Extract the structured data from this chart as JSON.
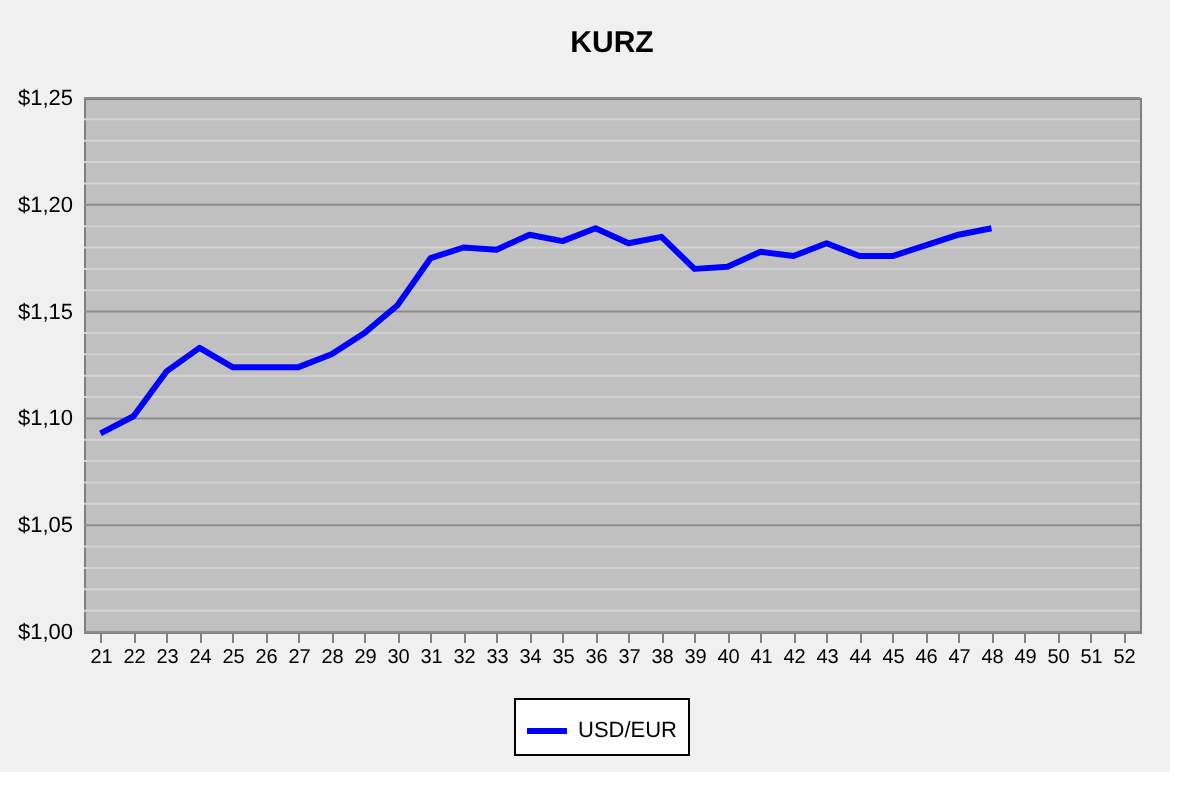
{
  "chart_data": {
    "type": "line",
    "title": "KURZ",
    "categories": [
      "21",
      "22",
      "23",
      "24",
      "25",
      "26",
      "27",
      "28",
      "29",
      "30",
      "31",
      "32",
      "33",
      "34",
      "35",
      "36",
      "37",
      "38",
      "39",
      "40",
      "41",
      "42",
      "43",
      "44",
      "45",
      "46",
      "47",
      "48",
      "49",
      "50",
      "51",
      "52"
    ],
    "series": [
      {
        "name": "USD/EUR",
        "color": "#0000ff",
        "values": [
          1.093,
          1.101,
          1.122,
          1.133,
          1.124,
          1.124,
          1.124,
          1.13,
          1.14,
          1.153,
          1.175,
          1.18,
          1.179,
          1.186,
          1.183,
          1.189,
          1.182,
          1.185,
          1.17,
          1.171,
          1.178,
          1.176,
          1.182,
          1.176,
          1.176,
          1.181,
          1.186,
          1.189,
          null,
          null,
          null,
          null
        ]
      }
    ],
    "ylim": [
      1.0,
      1.25
    ],
    "yticks": [
      {
        "value": 1.0,
        "label": "$1,00"
      },
      {
        "value": 1.01,
        "label": null
      },
      {
        "value": 1.02,
        "label": null
      },
      {
        "value": 1.03,
        "label": null
      },
      {
        "value": 1.04,
        "label": null
      },
      {
        "value": 1.05,
        "label": "$1,05"
      },
      {
        "value": 1.06,
        "label": null
      },
      {
        "value": 1.07,
        "label": null
      },
      {
        "value": 1.08,
        "label": null
      },
      {
        "value": 1.09,
        "label": null
      },
      {
        "value": 1.1,
        "label": "$1,10"
      },
      {
        "value": 1.11,
        "label": null
      },
      {
        "value": 1.12,
        "label": null
      },
      {
        "value": 1.13,
        "label": null
      },
      {
        "value": 1.14,
        "label": null
      },
      {
        "value": 1.15,
        "label": "$1,15"
      },
      {
        "value": 1.16,
        "label": null
      },
      {
        "value": 1.17,
        "label": null
      },
      {
        "value": 1.18,
        "label": null
      },
      {
        "value": 1.19,
        "label": null
      },
      {
        "value": 1.2,
        "label": "$1,20"
      },
      {
        "value": 1.21,
        "label": null
      },
      {
        "value": 1.22,
        "label": null
      },
      {
        "value": 1.23,
        "label": null
      },
      {
        "value": 1.24,
        "label": null
      },
      {
        "value": 1.25,
        "label": "$1,25"
      }
    ],
    "grid": "y",
    "legend": "bottom",
    "marker": "none",
    "line_style": "solid"
  }
}
